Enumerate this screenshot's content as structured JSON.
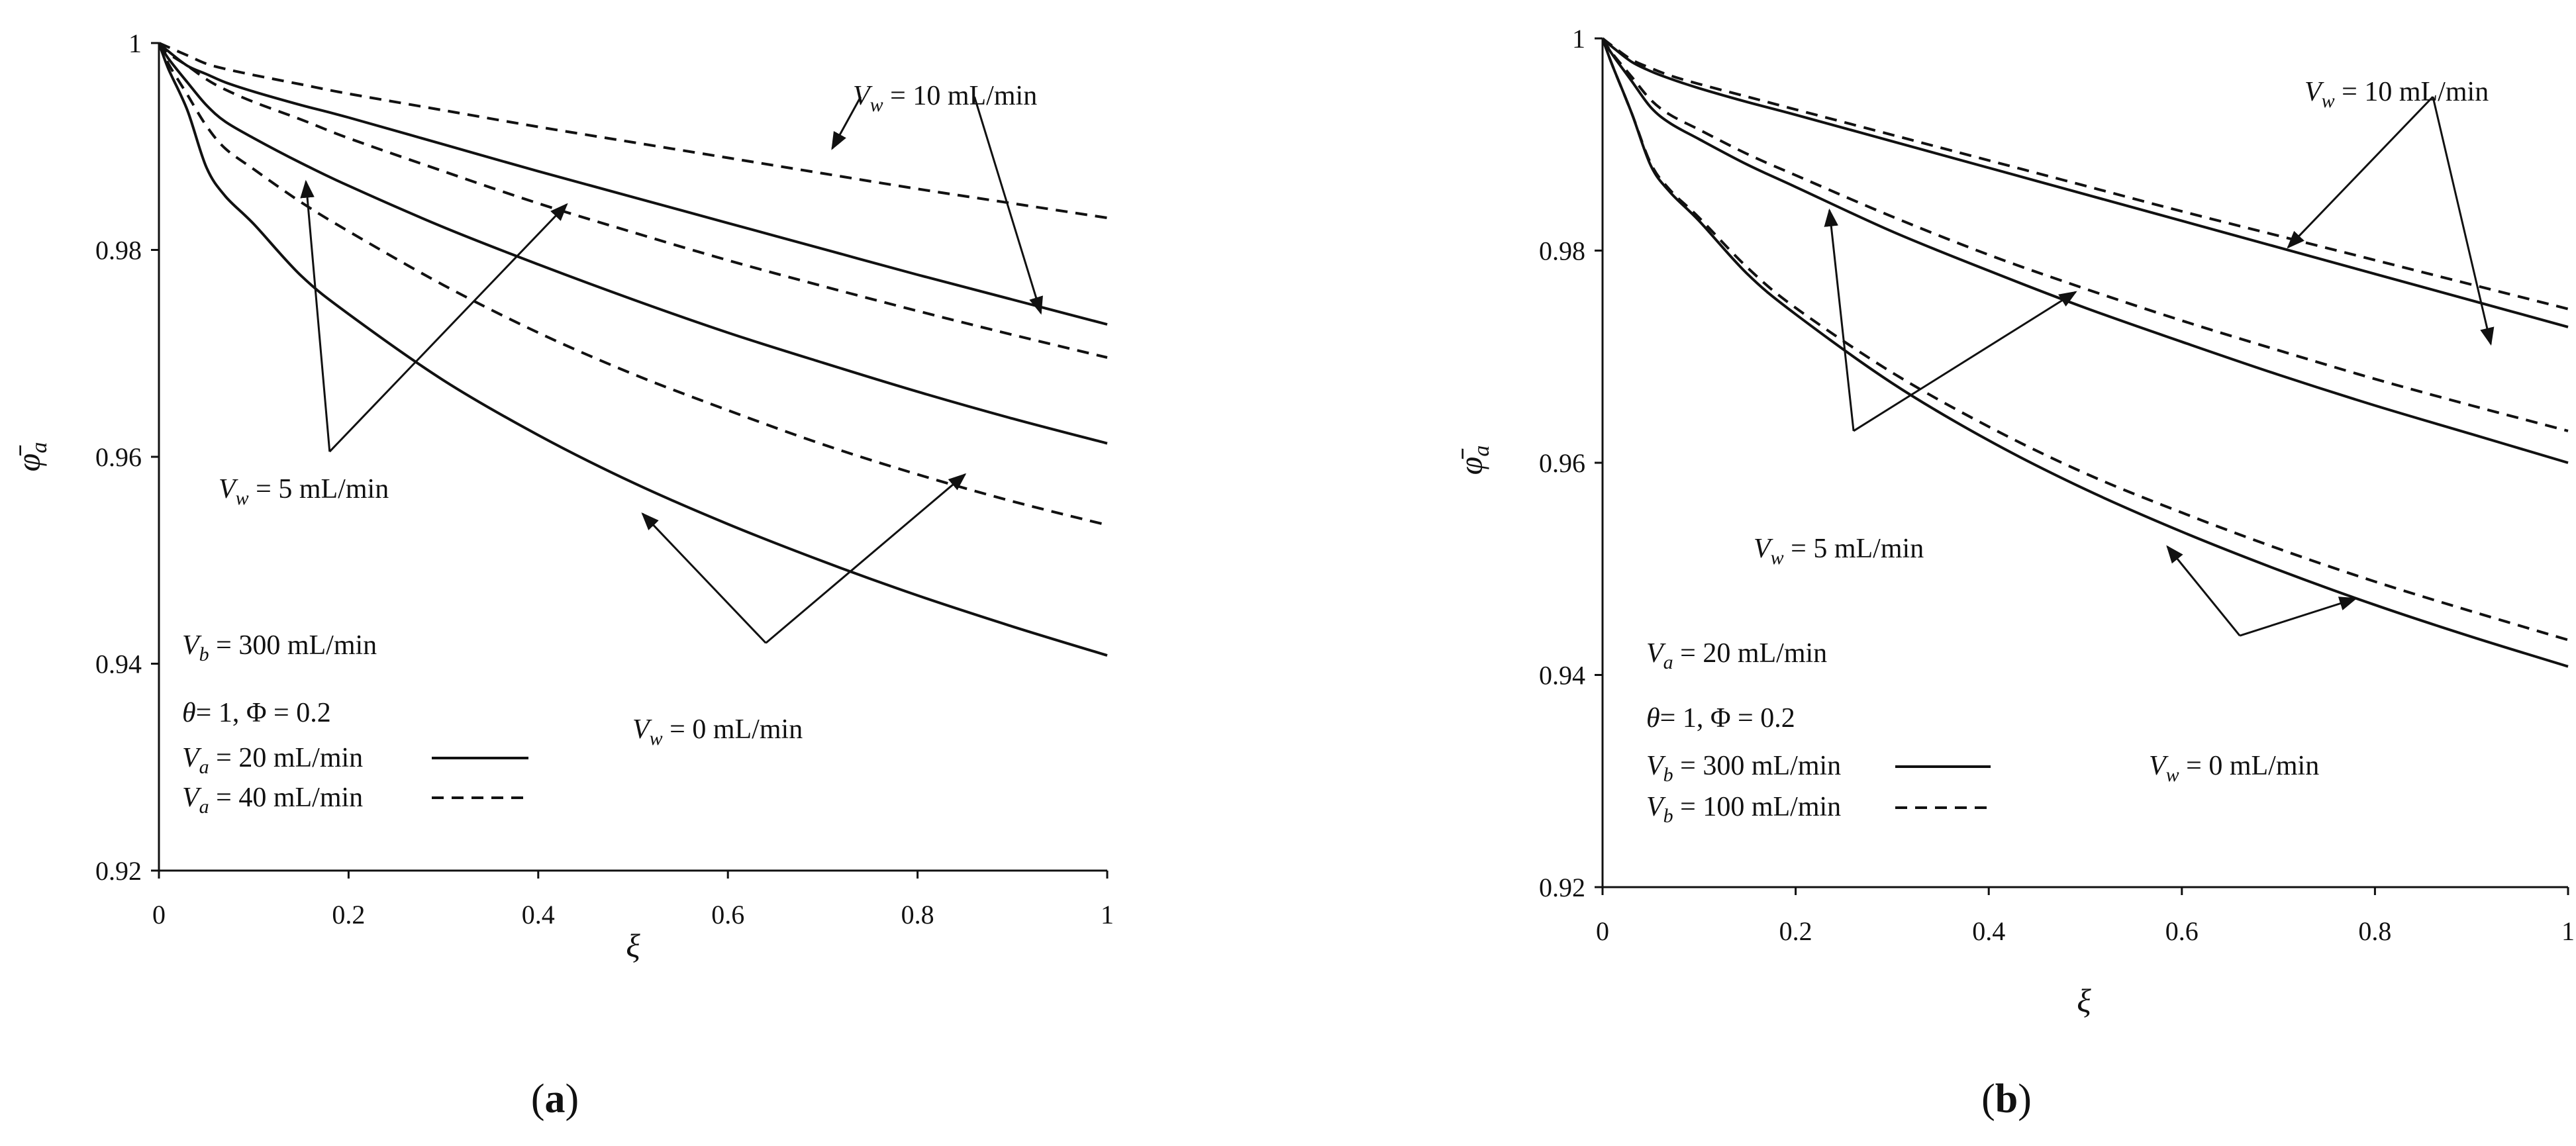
{
  "chart_data": [
    {
      "type": "line",
      "panel_label": "a",
      "xlabel": "ξ",
      "ylabel": "φ̄",
      "ylabel_sub": "a",
      "xlim": [
        0,
        1
      ],
      "ylim": [
        0.92,
        1
      ],
      "x_ticks": [
        "0",
        "0.2",
        "0.4",
        "0.6",
        "0.8",
        "1"
      ],
      "y_ticks": [
        "0.92",
        "0.94",
        "0.96",
        "0.98",
        "1"
      ],
      "grid": false,
      "series": [
        {
          "style": "solid",
          "x": [
            0,
            0.01,
            0.03,
            0.05,
            0.07,
            0.1,
            0.15,
            0.2,
            0.3,
            0.4,
            0.5,
            0.6,
            0.7,
            0.8,
            0.9,
            1.0
          ],
          "y": [
            1.0,
            0.9975,
            0.9935,
            0.988,
            0.9852,
            0.9825,
            0.9775,
            0.9738,
            0.9674,
            0.9621,
            0.9575,
            0.9535,
            0.9499,
            0.9466,
            0.9436,
            0.9408
          ]
        },
        {
          "style": "dashed",
          "x": [
            0,
            0.01,
            0.03,
            0.05,
            0.07,
            0.1,
            0.15,
            0.2,
            0.3,
            0.4,
            0.5,
            0.6,
            0.7,
            0.8,
            0.9,
            1.0
          ],
          "y": [
            1.0,
            0.998,
            0.995,
            0.992,
            0.9898,
            0.9878,
            0.9846,
            0.9818,
            0.9766,
            0.972,
            0.968,
            0.9645,
            0.9612,
            0.9583,
            0.9557,
            0.9534
          ]
        },
        {
          "style": "solid",
          "x": [
            0,
            0.01,
            0.03,
            0.05,
            0.07,
            0.1,
            0.15,
            0.2,
            0.3,
            0.4,
            0.5,
            0.6,
            0.7,
            0.8,
            0.9,
            1.0
          ],
          "y": [
            1.0,
            0.9985,
            0.9962,
            0.994,
            0.9924,
            0.9908,
            0.9884,
            0.9862,
            0.9822,
            0.9786,
            0.9752,
            0.972,
            0.9691,
            0.9663,
            0.9637,
            0.9613
          ]
        },
        {
          "style": "dashed",
          "x": [
            0,
            0.01,
            0.03,
            0.05,
            0.07,
            0.1,
            0.15,
            0.2,
            0.3,
            0.4,
            0.5,
            0.6,
            0.7,
            0.8,
            0.9,
            1.0
          ],
          "y": [
            1.0,
            0.999,
            0.9978,
            0.9965,
            0.9955,
            0.9943,
            0.9926,
            0.9908,
            0.9876,
            0.9845,
            0.9817,
            0.979,
            0.9765,
            0.9741,
            0.9718,
            0.9696
          ]
        },
        {
          "style": "solid",
          "x": [
            0,
            0.01,
            0.03,
            0.05,
            0.07,
            0.1,
            0.15,
            0.2,
            0.3,
            0.4,
            0.5,
            0.6,
            0.7,
            0.8,
            0.9,
            1.0
          ],
          "y": [
            1.0,
            0.9992,
            0.9978,
            0.997,
            0.9962,
            0.9953,
            0.994,
            0.9928,
            0.9902,
            0.9876,
            0.9851,
            0.9826,
            0.9801,
            0.9776,
            0.9752,
            0.9728
          ]
        },
        {
          "style": "dashed",
          "x": [
            0,
            0.01,
            0.03,
            0.05,
            0.07,
            0.1,
            0.15,
            0.2,
            0.3,
            0.4,
            0.5,
            0.6,
            0.7,
            0.8,
            0.9,
            1.0
          ],
          "y": [
            1.0,
            0.9996,
            0.9988,
            0.998,
            0.9975,
            0.9969,
            0.996,
            0.9951,
            0.9935,
            0.9919,
            0.9904,
            0.9889,
            0.9874,
            0.9859,
            0.9845,
            0.9831
          ]
        }
      ],
      "annotations": {
        "vw10": {
          "main": "V",
          "sub": "w",
          "rest": " = 10 mL/min"
        },
        "vw5": {
          "main": "V",
          "sub": "w",
          "rest": " = 5 mL/min"
        },
        "vw0": {
          "main": "V",
          "sub": "w",
          "rest": " = 0 mL/min"
        }
      },
      "arrows": [
        {
          "group": "vw10",
          "from": [
            0.74,
            0.9948
          ],
          "to": [
            0.71,
            0.9898
          ]
        },
        {
          "group": "vw10",
          "from": [
            0.86,
            0.9948
          ],
          "to": [
            0.93,
            0.9739
          ]
        },
        {
          "group": "vw5",
          "from": [
            0.18,
            0.9605
          ],
          "to": [
            0.155,
            0.9866
          ]
        },
        {
          "group": "vw5",
          "from": [
            0.18,
            0.9605
          ],
          "to": [
            0.43,
            0.9844
          ]
        },
        {
          "group": "vw0",
          "from": [
            0.64,
            0.942
          ],
          "to": [
            0.51,
            0.9545
          ]
        },
        {
          "group": "vw0",
          "from": [
            0.64,
            0.942
          ],
          "to": [
            0.85,
            0.9583
          ]
        }
      ],
      "conditions": [
        {
          "main": "V",
          "sub": "b",
          "rest": " = 300 mL/min"
        },
        {
          "theta": "θ",
          "rest": "= 1, Φ = 0.2"
        }
      ],
      "legend": {
        "placement": "bottom-left",
        "entries": [
          {
            "main": "V",
            "sub": "a",
            "rest": " = 20 mL/min",
            "style": "solid"
          },
          {
            "main": "V",
            "sub": "a",
            "rest": " = 40 mL/min",
            "style": "dashed"
          }
        ]
      }
    },
    {
      "type": "line",
      "panel_label": "b",
      "xlabel": "ξ",
      "ylabel": "φ̄",
      "ylabel_sub": "a",
      "xlim": [
        0,
        1
      ],
      "ylim": [
        0.92,
        1
      ],
      "x_ticks": [
        "0",
        "0.2",
        "0.4",
        "0.6",
        "0.8",
        "1"
      ],
      "y_ticks": [
        "0.92",
        "0.94",
        "0.96",
        "0.98",
        "1"
      ],
      "grid": false,
      "series": [
        {
          "style": "solid",
          "x": [
            0,
            0.01,
            0.03,
            0.05,
            0.07,
            0.1,
            0.15,
            0.2,
            0.3,
            0.4,
            0.5,
            0.6,
            0.7,
            0.8,
            0.9,
            1.0
          ],
          "y": [
            1.0,
            0.9975,
            0.993,
            0.988,
            0.9855,
            0.9828,
            0.9778,
            0.974,
            0.9675,
            0.9621,
            0.9575,
            0.9535,
            0.9499,
            0.9466,
            0.9436,
            0.9408
          ]
        },
        {
          "style": "dashed",
          "x": [
            0,
            0.01,
            0.03,
            0.05,
            0.07,
            0.1,
            0.15,
            0.2,
            0.3,
            0.4,
            0.5,
            0.6,
            0.7,
            0.8,
            0.9,
            1.0
          ],
          "y": [
            1.0,
            0.9975,
            0.993,
            0.9882,
            0.9857,
            0.9831,
            0.9784,
            0.9746,
            0.9685,
            0.9634,
            0.959,
            0.9553,
            0.9519,
            0.9488,
            0.946,
            0.9433
          ]
        },
        {
          "style": "solid",
          "x": [
            0,
            0.01,
            0.03,
            0.05,
            0.07,
            0.1,
            0.15,
            0.2,
            0.3,
            0.4,
            0.5,
            0.6,
            0.7,
            0.8,
            0.9,
            1.0
          ],
          "y": [
            1.0,
            0.9985,
            0.996,
            0.9935,
            0.992,
            0.9905,
            0.9881,
            0.986,
            0.9818,
            0.9781,
            0.9746,
            0.9714,
            0.9683,
            0.9654,
            0.9627,
            0.96
          ]
        },
        {
          "style": "dashed",
          "x": [
            0,
            0.01,
            0.03,
            0.05,
            0.07,
            0.1,
            0.15,
            0.2,
            0.3,
            0.4,
            0.5,
            0.6,
            0.7,
            0.8,
            0.9,
            1.0
          ],
          "y": [
            1.0,
            0.9986,
            0.9964,
            0.9942,
            0.9928,
            0.9914,
            0.9891,
            0.9871,
            0.9832,
            0.9796,
            0.9764,
            0.9734,
            0.9706,
            0.9679,
            0.9654,
            0.963
          ]
        },
        {
          "style": "solid",
          "x": [
            0,
            0.01,
            0.03,
            0.05,
            0.07,
            0.1,
            0.15,
            0.2,
            0.3,
            0.4,
            0.5,
            0.6,
            0.7,
            0.8,
            0.9,
            1.0
          ],
          "y": [
            1.0,
            0.9992,
            0.9978,
            0.9969,
            0.9962,
            0.9953,
            0.994,
            0.9928,
            0.9903,
            0.9878,
            0.9853,
            0.9828,
            0.9803,
            0.9778,
            0.9753,
            0.9728
          ]
        },
        {
          "style": "dashed",
          "x": [
            0,
            0.01,
            0.03,
            0.05,
            0.07,
            0.1,
            0.15,
            0.2,
            0.3,
            0.4,
            0.5,
            0.6,
            0.7,
            0.8,
            0.9,
            1.0
          ],
          "y": [
            1.0,
            0.9993,
            0.998,
            0.9972,
            0.9965,
            0.9957,
            0.9945,
            0.9933,
            0.9909,
            0.9885,
            0.9861,
            0.9837,
            0.9814,
            0.9791,
            0.9768,
            0.9745
          ]
        }
      ],
      "annotations": {
        "vw10": {
          "main": "V",
          "sub": "w",
          "rest": " = 10 mL/min"
        },
        "vw5": {
          "main": "V",
          "sub": "w",
          "rest": " = 5 mL/min"
        },
        "vw0": {
          "main": "V",
          "sub": "w",
          "rest": " = 0 mL/min"
        }
      },
      "arrows": [
        {
          "group": "vw10",
          "from": [
            0.86,
            0.9945
          ],
          "to": [
            0.71,
            0.9803
          ]
        },
        {
          "group": "vw10",
          "from": [
            0.86,
            0.9945
          ],
          "to": [
            0.92,
            0.9712
          ]
        },
        {
          "group": "vw5",
          "from": [
            0.26,
            0.963
          ],
          "to": [
            0.235,
            0.9838
          ]
        },
        {
          "group": "vw5",
          "from": [
            0.26,
            0.963
          ],
          "to": [
            0.49,
            0.9761
          ]
        },
        {
          "group": "vw0",
          "from": [
            0.66,
            0.9437
          ],
          "to": [
            0.585,
            0.9521
          ]
        },
        {
          "group": "vw0",
          "from": [
            0.66,
            0.9437
          ],
          "to": [
            0.78,
            0.9472
          ]
        }
      ],
      "conditions": [
        {
          "main": "V",
          "sub": "a",
          "rest": " = 20 mL/min"
        },
        {
          "theta": "θ",
          "rest": "= 1, Φ = 0.2"
        }
      ],
      "legend": {
        "placement": "bottom-left",
        "entries": [
          {
            "main": "V",
            "sub": "b",
            "rest": " = 300 mL/min",
            "style": "solid"
          },
          {
            "main": "V",
            "sub": "b",
            "rest": " = 100 mL/min",
            "style": "dashed"
          }
        ]
      }
    }
  ]
}
